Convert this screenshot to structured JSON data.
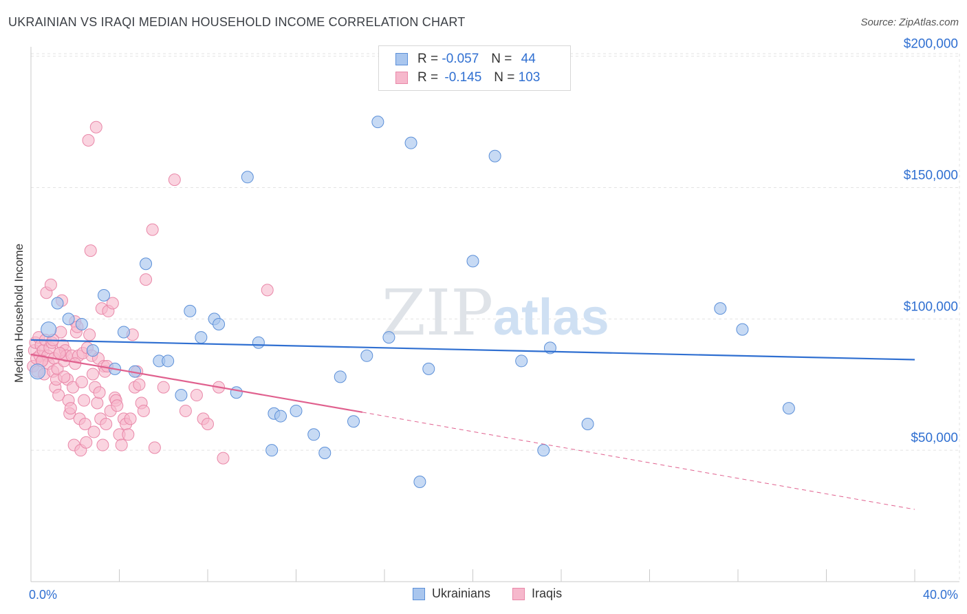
{
  "title": "UKRAINIAN VS IRAQI MEDIAN HOUSEHOLD INCOME CORRELATION CHART",
  "source": "Source: ZipAtlas.com",
  "watermark": {
    "part1": "ZIP",
    "part2": "atlas"
  },
  "legend": {
    "rows": [
      {
        "r_label": "R =",
        "r_value": "-0.057",
        "n_label": "N =",
        "n_value": "44"
      },
      {
        "r_label": "R =",
        "r_value": "-0.145",
        "n_label": "N =",
        "n_value": "103"
      }
    ]
  },
  "colors": {
    "ukrainians_fill": "#a9c6ee",
    "ukrainians_stroke": "#5b8fd8",
    "ukrainians_line": "#2f6fd1",
    "iraqis_fill": "#f6b8cc",
    "iraqis_stroke": "#e987a8",
    "iraqis_line": "#e0608e",
    "axis_text": "#2f6fd1",
    "grid": "#e3e3e3"
  },
  "chart_data": {
    "type": "scatter",
    "title": "UKRAINIAN VS IRAQI MEDIAN HOUSEHOLD INCOME CORRELATION CHART",
    "xlabel": "",
    "ylabel": "Median Household Income",
    "xlim": [
      0,
      40
    ],
    "ylim": [
      0,
      205000
    ],
    "x_tick_labels": [
      "0.0%",
      "40.0%"
    ],
    "y_ticks": [
      50000,
      100000,
      150000,
      200000
    ],
    "y_tick_labels": [
      "$50,000",
      "$100,000",
      "$150,000",
      "$200,000"
    ],
    "grid": true,
    "legend_position": "top-center",
    "series": [
      {
        "name": "Ukrainians",
        "r": -0.057,
        "n": 44,
        "trend": {
          "x": [
            0,
            40
          ],
          "y": [
            92000,
            84500
          ],
          "extrapolated": false
        },
        "points": [
          [
            0.3,
            80000
          ],
          [
            0.8,
            96000
          ],
          [
            1.2,
            106000
          ],
          [
            1.7,
            100000
          ],
          [
            2.3,
            98000
          ],
          [
            2.8,
            88000
          ],
          [
            3.3,
            109000
          ],
          [
            3.8,
            81000
          ],
          [
            4.2,
            95000
          ],
          [
            4.7,
            80000
          ],
          [
            5.2,
            121000
          ],
          [
            5.8,
            84000
          ],
          [
            6.2,
            84000
          ],
          [
            6.8,
            71000
          ],
          [
            7.2,
            103000
          ],
          [
            7.7,
            93000
          ],
          [
            8.3,
            100000
          ],
          [
            8.5,
            98000
          ],
          [
            9.3,
            72000
          ],
          [
            9.8,
            154000
          ],
          [
            10.3,
            91000
          ],
          [
            11.0,
            64000
          ],
          [
            11.3,
            63000
          ],
          [
            10.9,
            50000
          ],
          [
            12.0,
            65000
          ],
          [
            12.8,
            56000
          ],
          [
            13.3,
            49000
          ],
          [
            14.0,
            78000
          ],
          [
            14.6,
            61000
          ],
          [
            15.2,
            86000
          ],
          [
            15.7,
            175000
          ],
          [
            16.2,
            93000
          ],
          [
            17.2,
            167000
          ],
          [
            17.6,
            38000
          ],
          [
            18.0,
            81000
          ],
          [
            20.0,
            122000
          ],
          [
            21.0,
            162000
          ],
          [
            22.2,
            84000
          ],
          [
            23.2,
            50000
          ],
          [
            23.5,
            89000
          ],
          [
            25.2,
            60000
          ],
          [
            31.2,
            104000
          ],
          [
            32.2,
            96000
          ],
          [
            34.3,
            66000
          ]
        ]
      },
      {
        "name": "Iraqis",
        "r": -0.145,
        "n": 103,
        "trend": {
          "x": [
            0,
            15
          ],
          "y": [
            86500,
            64500
          ],
          "dashed_to": [
            40,
            27500
          ]
        },
        "points": [
          [
            0.1,
            82000
          ],
          [
            0.15,
            88000
          ],
          [
            0.2,
            91000
          ],
          [
            0.25,
            85000
          ],
          [
            0.3,
            80000
          ],
          [
            0.35,
            93000
          ],
          [
            0.4,
            86000
          ],
          [
            0.45,
            90000
          ],
          [
            0.5,
            84000
          ],
          [
            0.55,
            88000
          ],
          [
            0.6,
            79000
          ],
          [
            0.65,
            92000
          ],
          [
            0.7,
            110000
          ],
          [
            0.75,
            86000
          ],
          [
            0.8,
            83000
          ],
          [
            0.85,
            89000
          ],
          [
            0.9,
            113000
          ],
          [
            0.95,
            91000
          ],
          [
            1.0,
            80000
          ],
          [
            1.05,
            85000
          ],
          [
            1.1,
            74000
          ],
          [
            1.15,
            77000
          ],
          [
            1.2,
            81000
          ],
          [
            1.25,
            71000
          ],
          [
            1.3,
            87000
          ],
          [
            1.35,
            95000
          ],
          [
            1.4,
            107000
          ],
          [
            1.45,
            90000
          ],
          [
            1.5,
            84000
          ],
          [
            1.55,
            88000
          ],
          [
            1.6,
            86000
          ],
          [
            1.65,
            77000
          ],
          [
            1.7,
            69000
          ],
          [
            1.75,
            64000
          ],
          [
            1.8,
            66000
          ],
          [
            1.85,
            86000
          ],
          [
            1.9,
            74000
          ],
          [
            1.95,
            52000
          ],
          [
            2.0,
            99000
          ],
          [
            2.05,
            95000
          ],
          [
            2.1,
            97000
          ],
          [
            2.15,
            86000
          ],
          [
            2.2,
            62000
          ],
          [
            2.25,
            50000
          ],
          [
            2.3,
            76000
          ],
          [
            2.35,
            87000
          ],
          [
            2.4,
            69000
          ],
          [
            2.45,
            60000
          ],
          [
            2.5,
            53000
          ],
          [
            2.55,
            89000
          ],
          [
            2.6,
            168000
          ],
          [
            2.65,
            94000
          ],
          [
            2.7,
            126000
          ],
          [
            2.75,
            86000
          ],
          [
            2.8,
            79000
          ],
          [
            2.85,
            57000
          ],
          [
            2.9,
            74000
          ],
          [
            2.95,
            173000
          ],
          [
            3.0,
            68000
          ],
          [
            3.05,
            85000
          ],
          [
            3.1,
            72000
          ],
          [
            3.15,
            62000
          ],
          [
            3.2,
            104000
          ],
          [
            3.25,
            52000
          ],
          [
            3.3,
            82000
          ],
          [
            3.35,
            80000
          ],
          [
            3.4,
            60000
          ],
          [
            3.45,
            82000
          ],
          [
            3.5,
            103000
          ],
          [
            3.6,
            65000
          ],
          [
            3.7,
            106000
          ],
          [
            3.8,
            70000
          ],
          [
            3.85,
            69000
          ],
          [
            3.9,
            67000
          ],
          [
            4.0,
            56000
          ],
          [
            4.1,
            52000
          ],
          [
            4.2,
            62000
          ],
          [
            4.3,
            60000
          ],
          [
            4.4,
            56000
          ],
          [
            4.5,
            62000
          ],
          [
            4.6,
            94000
          ],
          [
            4.7,
            74000
          ],
          [
            4.8,
            80000
          ],
          [
            4.9,
            75000
          ],
          [
            5.0,
            68000
          ],
          [
            5.1,
            65000
          ],
          [
            5.2,
            115000
          ],
          [
            5.5,
            134000
          ],
          [
            5.6,
            51000
          ],
          [
            6.0,
            74000
          ],
          [
            6.5,
            153000
          ],
          [
            7.0,
            65000
          ],
          [
            7.5,
            71000
          ],
          [
            7.8,
            62000
          ],
          [
            8.0,
            60000
          ],
          [
            8.5,
            74000
          ],
          [
            8.7,
            47000
          ],
          [
            0.5,
            84000
          ],
          [
            1.0,
            92000
          ],
          [
            1.5,
            78000
          ],
          [
            2.0,
            83000
          ],
          [
            10.7,
            111000
          ],
          [
            1.3,
            87000
          ]
        ]
      }
    ]
  },
  "bottom_legend": {
    "items": [
      "Ukrainians",
      "Iraqis"
    ]
  }
}
